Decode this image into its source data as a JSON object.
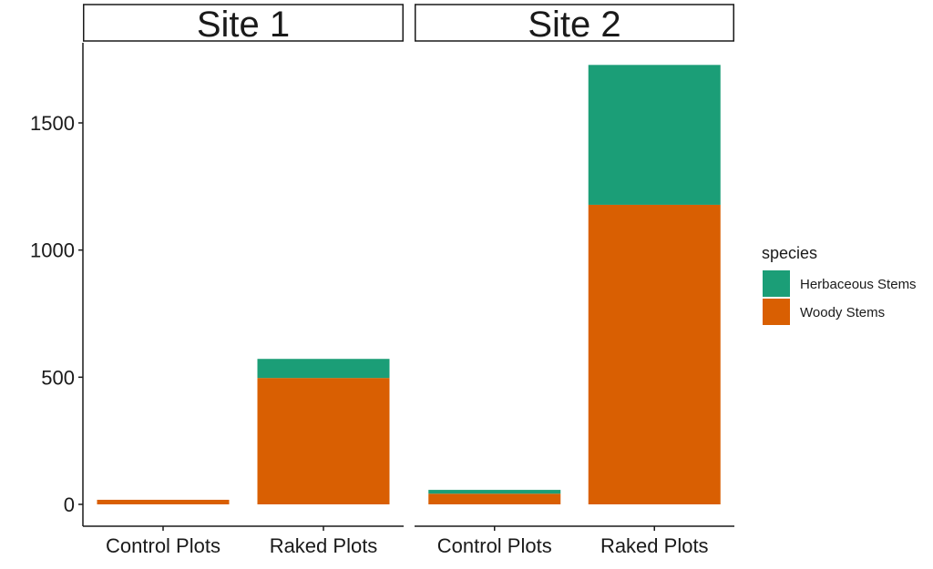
{
  "chart_data": {
    "type": "bar",
    "stacked": true,
    "facets": [
      "Site 1",
      "Site 2"
    ],
    "categories": [
      "Control Plots",
      "Raked Plots"
    ],
    "series": [
      {
        "name": "Herbaceous Stems",
        "color": "#1b9e77",
        "values": {
          "Site 1": [
            0,
            75
          ],
          "Site 2": [
            15,
            550
          ]
        }
      },
      {
        "name": "Woody Stems",
        "color": "#d95f02",
        "values": {
          "Site 1": [
            18,
            497
          ],
          "Site 2": [
            42,
            1178
          ]
        }
      }
    ],
    "yticks": [
      0,
      500,
      1000,
      1500
    ],
    "ylim": [
      0,
      1800
    ],
    "xlabel": "",
    "ylabel": "",
    "grid": false,
    "legend": {
      "title": "species",
      "position": "right",
      "entries": [
        "Herbaceous Stems",
        "Woody Stems"
      ]
    }
  }
}
